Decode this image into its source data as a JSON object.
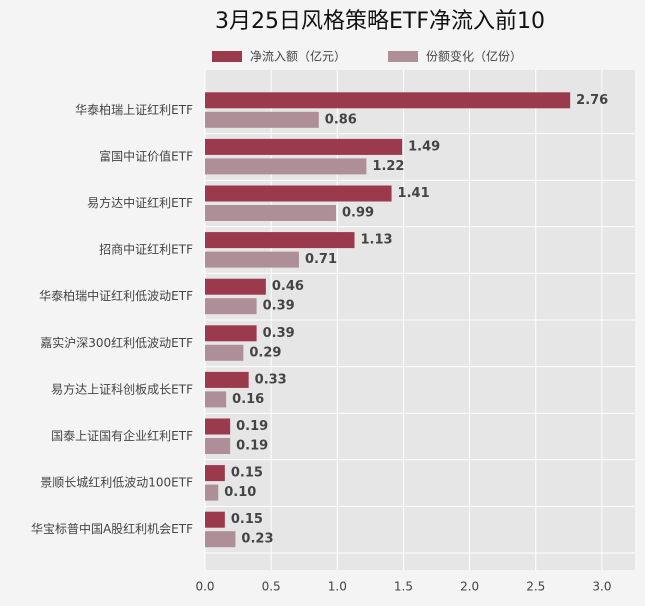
{
  "chart_data": {
    "type": "hbar",
    "title": "3月25日风格策略ETF净流入前10",
    "categories": [
      "华泰柏瑞上证红利ETF",
      "富国中证价值ETF",
      "易方达中证红利ETF",
      "招商中证红利ETF",
      "华泰柏瑞中证红利低波动ETF",
      "嘉实沪深300红利低波动ETF",
      "易方达上证科创板成长ETF",
      "国泰上证国有企业红利ETF",
      "景顺长城红利低波动100ETF",
      "华宝标普中国A股红利机会ETF"
    ],
    "series": [
      {
        "name": "净流入额（亿元）",
        "color": "#9b3a4d",
        "values": [
          2.76,
          1.49,
          1.41,
          1.13,
          0.46,
          0.39,
          0.33,
          0.19,
          0.15,
          0.15
        ],
        "value_labels": [
          "2.76",
          "1.49",
          "1.41",
          "1.13",
          "0.46",
          "0.39",
          "0.33",
          "0.19",
          "0.15",
          "0.15"
        ]
      },
      {
        "name": "份额变化（亿份）",
        "color": "#ae8f98",
        "values": [
          0.86,
          1.22,
          0.99,
          0.71,
          0.39,
          0.29,
          0.16,
          0.19,
          0.1,
          0.23
        ],
        "value_labels": [
          "0.86",
          "1.22",
          "0.99",
          "0.71",
          "0.39",
          "0.29",
          "0.16",
          "0.19",
          "0.10",
          "0.23"
        ]
      }
    ],
    "xlim": [
      0,
      3.25
    ],
    "xticks": [
      {
        "value": 0,
        "label": "0.0"
      },
      0.5,
      {
        "value": 1,
        "label": "1.0"
      },
      1.5,
      {
        "value": 2,
        "label": "2.0"
      },
      2.5,
      {
        "value": 3,
        "label": "3.0"
      }
    ],
    "grid": true
  }
}
